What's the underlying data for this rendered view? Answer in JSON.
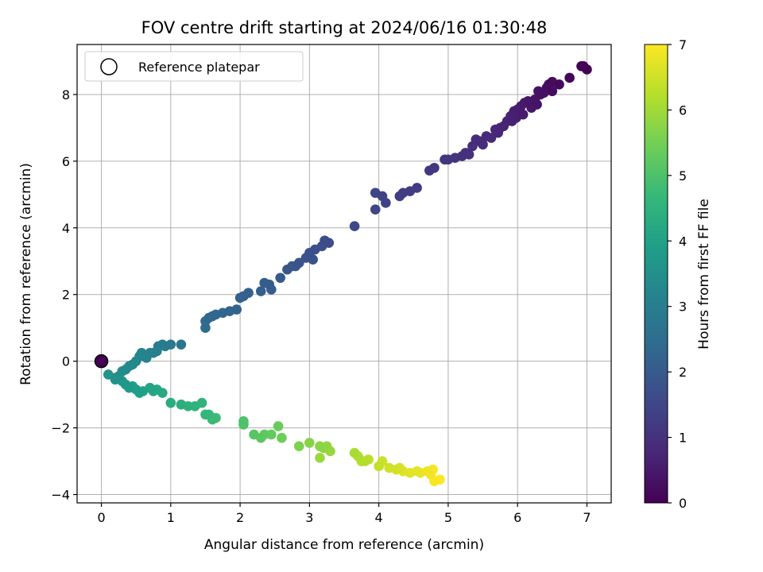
{
  "chart_data": {
    "type": "scatter",
    "title": "FOV centre drift starting at 2024/06/16 01:30:48",
    "xlabel": "Angular distance from reference (arcmin)",
    "ylabel": "Rotation from reference (arcmin)",
    "xlim": [
      -0.35,
      7.35
    ],
    "ylim": [
      -4.25,
      9.5
    ],
    "xticks": [
      0,
      1,
      2,
      3,
      4,
      5,
      6,
      7
    ],
    "yticks": [
      -4,
      -2,
      0,
      2,
      4,
      6,
      8
    ],
    "xtick_labels": [
      "0",
      "1",
      "2",
      "3",
      "4",
      "5",
      "6",
      "7"
    ],
    "ytick_labels": [
      "−4",
      "−2",
      "0",
      "2",
      "4",
      "6",
      "8"
    ],
    "grid": true,
    "legend": {
      "placement": "top-left",
      "entries": [
        {
          "label": "Reference platepar",
          "marker": "hollow-circle"
        }
      ]
    },
    "reference_point": {
      "x": 0,
      "y": 0
    },
    "colorbar": {
      "label": "Hours from first FF file",
      "range": [
        0,
        7
      ],
      "ticks": [
        0,
        1,
        2,
        3,
        4,
        5,
        6,
        7
      ],
      "tick_labels": [
        "0",
        "1",
        "2",
        "3",
        "4",
        "5",
        "6",
        "7"
      ],
      "colormap": "viridis",
      "stops": [
        "#440154",
        "#482878",
        "#3e4989",
        "#31688e",
        "#26828e",
        "#1f9e89",
        "#35b779",
        "#6ece58",
        "#b5de2b",
        "#fde725"
      ]
    },
    "points_xy_hours": [
      [
        7.0,
        8.75,
        0.0
      ],
      [
        6.95,
        8.85,
        0.02
      ],
      [
        6.92,
        8.85,
        0.05
      ],
      [
        6.75,
        8.5,
        0.1
      ],
      [
        6.6,
        8.3,
        0.15
      ],
      [
        6.5,
        8.38,
        0.2
      ],
      [
        6.5,
        8.1,
        0.22
      ],
      [
        6.45,
        8.3,
        0.25
      ],
      [
        6.42,
        8.2,
        0.28
      ],
      [
        6.38,
        8.05,
        0.3
      ],
      [
        6.33,
        8.0,
        0.33
      ],
      [
        6.3,
        8.1,
        0.35
      ],
      [
        6.28,
        7.7,
        0.38
      ],
      [
        6.25,
        7.85,
        0.4
      ],
      [
        6.22,
        7.7,
        0.42
      ],
      [
        6.2,
        7.6,
        0.45
      ],
      [
        6.15,
        7.8,
        0.47
      ],
      [
        6.1,
        7.75,
        0.5
      ],
      [
        6.08,
        7.4,
        0.52
      ],
      [
        6.05,
        7.65,
        0.55
      ],
      [
        6.0,
        7.55,
        0.57
      ],
      [
        5.98,
        7.3,
        0.6
      ],
      [
        5.95,
        7.5,
        0.62
      ],
      [
        5.92,
        7.2,
        0.65
      ],
      [
        5.9,
        7.35,
        0.67
      ],
      [
        5.85,
        7.2,
        0.7
      ],
      [
        5.8,
        7.05,
        0.72
      ],
      [
        5.75,
        7.0,
        0.75
      ],
      [
        5.72,
        6.85,
        0.78
      ],
      [
        5.68,
        6.95,
        0.8
      ],
      [
        5.62,
        6.7,
        0.83
      ],
      [
        5.55,
        6.75,
        0.85
      ],
      [
        5.5,
        6.5,
        0.88
      ],
      [
        5.45,
        6.6,
        0.9
      ],
      [
        5.4,
        6.65,
        0.93
      ],
      [
        5.35,
        6.45,
        0.95
      ],
      [
        5.3,
        6.2,
        0.98
      ],
      [
        5.25,
        6.25,
        1.0
      ],
      [
        5.2,
        6.15,
        1.02
      ],
      [
        5.1,
        6.1,
        1.05
      ],
      [
        5.0,
        6.05,
        1.08
      ],
      [
        4.95,
        6.05,
        1.1
      ],
      [
        4.8,
        5.8,
        1.15
      ],
      [
        4.73,
        5.72,
        1.18
      ],
      [
        4.55,
        5.2,
        1.25
      ],
      [
        4.45,
        5.1,
        1.28
      ],
      [
        4.35,
        5.05,
        1.3
      ],
      [
        4.3,
        4.95,
        1.33
      ],
      [
        4.1,
        4.75,
        1.4
      ],
      [
        4.05,
        4.95,
        1.42
      ],
      [
        3.95,
        5.05,
        1.45
      ],
      [
        3.95,
        4.55,
        1.48
      ],
      [
        3.65,
        4.05,
        1.55
      ],
      [
        3.28,
        3.55,
        1.65
      ],
      [
        3.22,
        3.62,
        1.68
      ],
      [
        3.18,
        3.45,
        1.7
      ],
      [
        3.08,
        3.35,
        1.73
      ],
      [
        3.0,
        3.25,
        1.75
      ],
      [
        3.05,
        3.05,
        1.78
      ],
      [
        2.95,
        3.1,
        1.8
      ],
      [
        2.85,
        2.95,
        1.83
      ],
      [
        2.8,
        2.85,
        1.85
      ],
      [
        2.75,
        2.85,
        1.88
      ],
      [
        2.68,
        2.75,
        1.9
      ],
      [
        2.58,
        2.5,
        1.95
      ],
      [
        2.45,
        2.15,
        2.0
      ],
      [
        2.42,
        2.3,
        2.02
      ],
      [
        2.35,
        2.35,
        2.05
      ],
      [
        2.3,
        2.1,
        2.08
      ],
      [
        2.12,
        2.05,
        2.12
      ],
      [
        2.05,
        1.95,
        2.15
      ],
      [
        2.0,
        1.9,
        2.18
      ],
      [
        1.95,
        1.55,
        2.22
      ],
      [
        1.85,
        1.5,
        2.25
      ],
      [
        1.75,
        1.45,
        2.28
      ],
      [
        1.65,
        1.4,
        2.3
      ],
      [
        1.6,
        1.35,
        2.33
      ],
      [
        1.55,
        1.3,
        2.36
      ],
      [
        1.5,
        1.2,
        2.4
      ],
      [
        1.5,
        1.0,
        2.45
      ],
      [
        1.15,
        0.5,
        2.75
      ],
      [
        1.0,
        0.5,
        2.85
      ],
      [
        0.92,
        0.45,
        2.9
      ],
      [
        0.88,
        0.5,
        2.95
      ],
      [
        0.82,
        0.45,
        3.0
      ],
      [
        0.8,
        0.3,
        3.05
      ],
      [
        0.75,
        0.25,
        3.1
      ],
      [
        0.7,
        0.25,
        3.13
      ],
      [
        0.65,
        0.1,
        3.16
      ],
      [
        0.58,
        0.25,
        3.2
      ],
      [
        0.55,
        0.15,
        3.24
      ],
      [
        0.5,
        0.0,
        3.28
      ],
      [
        0.45,
        -0.1,
        3.32
      ],
      [
        0.4,
        -0.15,
        3.36
      ],
      [
        0.35,
        -0.25,
        3.4
      ],
      [
        0.3,
        -0.3,
        3.45
      ],
      [
        0.25,
        -0.45,
        3.5
      ],
      [
        0.2,
        -0.5,
        3.55
      ],
      [
        0.1,
        -0.4,
        3.6
      ],
      [
        0.2,
        -0.55,
        3.65
      ],
      [
        0.3,
        -0.6,
        3.7
      ],
      [
        0.35,
        -0.7,
        3.75
      ],
      [
        0.4,
        -0.8,
        3.8
      ],
      [
        0.45,
        -0.75,
        3.85
      ],
      [
        0.5,
        -0.85,
        3.9
      ],
      [
        0.55,
        -0.95,
        3.95
      ],
      [
        0.6,
        -0.9,
        4.0
      ],
      [
        0.7,
        -0.8,
        4.05
      ],
      [
        0.75,
        -0.9,
        4.1
      ],
      [
        0.8,
        -0.85,
        4.15
      ],
      [
        0.88,
        -0.95,
        4.2
      ],
      [
        1.0,
        -1.25,
        4.3
      ],
      [
        1.15,
        -1.3,
        4.4
      ],
      [
        1.25,
        -1.35,
        4.45
      ],
      [
        1.35,
        -1.35,
        4.5
      ],
      [
        1.45,
        -1.25,
        4.55
      ],
      [
        1.5,
        -1.6,
        4.65
      ],
      [
        1.55,
        -1.6,
        4.7
      ],
      [
        1.6,
        -1.75,
        4.75
      ],
      [
        1.65,
        -1.7,
        4.8
      ],
      [
        2.05,
        -1.8,
        5.0
      ],
      [
        2.05,
        -1.9,
        5.05
      ],
      [
        2.2,
        -2.2,
        5.15
      ],
      [
        2.3,
        -2.3,
        5.2
      ],
      [
        2.35,
        -2.2,
        5.25
      ],
      [
        2.45,
        -2.2,
        5.3
      ],
      [
        2.55,
        -1.95,
        5.35
      ],
      [
        2.6,
        -2.3,
        5.4
      ],
      [
        2.85,
        -2.55,
        5.6
      ],
      [
        3.0,
        -2.45,
        5.7
      ],
      [
        3.15,
        -2.55,
        5.75
      ],
      [
        3.2,
        -2.6,
        5.8
      ],
      [
        3.25,
        -2.55,
        5.85
      ],
      [
        3.3,
        -2.7,
        5.9
      ],
      [
        3.15,
        -2.9,
        5.95
      ],
      [
        3.65,
        -2.75,
        6.1
      ],
      [
        3.7,
        -2.85,
        6.15
      ],
      [
        3.75,
        -3.0,
        6.2
      ],
      [
        3.8,
        -3.0,
        6.25
      ],
      [
        3.85,
        -2.95,
        6.3
      ],
      [
        4.0,
        -3.15,
        6.4
      ],
      [
        4.05,
        -3.0,
        6.45
      ],
      [
        4.15,
        -3.2,
        6.5
      ],
      [
        4.25,
        -3.25,
        6.55
      ],
      [
        4.3,
        -3.2,
        6.6
      ],
      [
        4.35,
        -3.3,
        6.65
      ],
      [
        4.45,
        -3.35,
        6.7
      ],
      [
        4.55,
        -3.3,
        6.75
      ],
      [
        4.6,
        -3.35,
        6.8
      ],
      [
        4.7,
        -3.3,
        6.85
      ],
      [
        4.75,
        -3.4,
        6.9
      ],
      [
        4.78,
        -3.25,
        6.92
      ],
      [
        4.8,
        -3.6,
        6.95
      ],
      [
        4.88,
        -3.55,
        7.0
      ]
    ]
  }
}
